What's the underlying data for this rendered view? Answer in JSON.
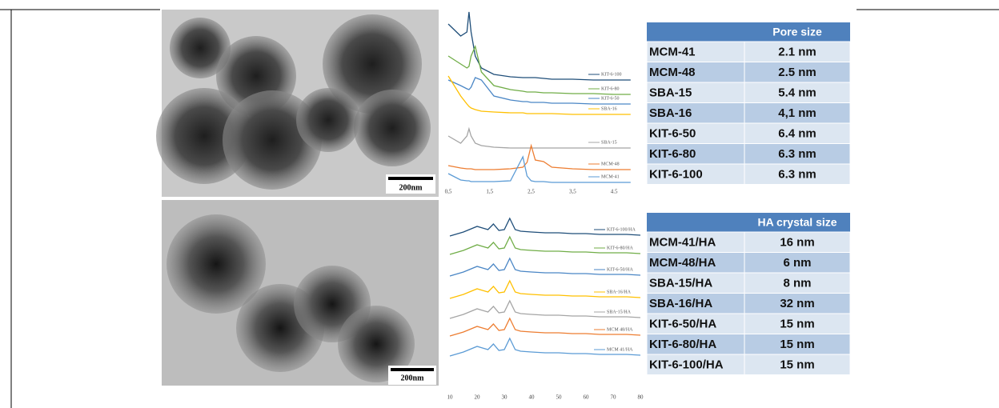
{
  "chart_data": [
    {
      "type": "line",
      "x": [
        0.5,
        0.8,
        0.95,
        1,
        1.05,
        1.15,
        1.3,
        1.6,
        2,
        2.3,
        2.4,
        2.5,
        2.6,
        2.8,
        3,
        3.5,
        4,
        4.5,
        4.9
      ],
      "xlim": [
        0.5,
        5.0
      ],
      "xticks": [
        {
          "value": 0.5,
          "label": "0,5"
        },
        {
          "value": 1.5,
          "label": "1,5"
        },
        {
          "value": 2.5,
          "label": "2,5"
        },
        {
          "value": 3.5,
          "label": "3,5"
        },
        {
          "value": 4.5,
          "label": "4.5"
        }
      ],
      "ylim": [
        0,
        22
      ],
      "series": [
        {
          "name": "KIT-6-100",
          "color": "#1f4e79",
          "values": [
            20.5,
            19,
            19.5,
            22,
            19.5,
            16.5,
            15,
            14.2,
            13.9,
            13.8,
            13.8,
            13.8,
            13.8,
            13.7,
            13.6,
            13.6,
            13.5,
            13.5,
            13.5
          ]
        },
        {
          "name": "KIT-6-80",
          "color": "#70ad47",
          "values": [
            16.5,
            15.5,
            15,
            15.2,
            16.5,
            17.7,
            14.5,
            12.8,
            12.3,
            12.1,
            12,
            12,
            12,
            11.9,
            11.9,
            11.8,
            11.8,
            11.7,
            11.7
          ]
        },
        {
          "name": "KIT-6-50",
          "color": "#4a86c5",
          "values": [
            13.5,
            12.8,
            12.4,
            12.3,
            12.6,
            13.8,
            13.5,
            11.5,
            11,
            10.8,
            10.8,
            10.7,
            10.7,
            10.7,
            10.6,
            10.6,
            10.5,
            10.5,
            10.5
          ]
        },
        {
          "name": "SBA-16",
          "color": "#ffc000",
          "values": [
            14,
            11.5,
            10.5,
            10.2,
            10,
            9.8,
            9.6,
            9.5,
            9.4,
            9.4,
            9.3,
            9.3,
            9.3,
            9.3,
            9.3,
            9.2,
            9.2,
            9.2,
            9.2
          ]
        },
        {
          "name": "SBA-15",
          "color": "#a5a5a5",
          "values": [
            6.5,
            5.6,
            6.5,
            7.4,
            6.5,
            5.6,
            5.3,
            5.1,
            5,
            5,
            5,
            5,
            5,
            5,
            5,
            5,
            5,
            5,
            5
          ]
        },
        {
          "name": "MCM-48",
          "color": "#ed7d31",
          "values": [
            2.8,
            2.5,
            2.4,
            2.4,
            2.4,
            2.3,
            2.3,
            2.3,
            2.4,
            2.6,
            3.2,
            5.3,
            3.5,
            3.3,
            2.6,
            2.4,
            2.3,
            2.3,
            2.3
          ]
        },
        {
          "name": "MCM-41",
          "color": "#5b9bd5",
          "values": [
            1.8,
            1,
            0.9,
            0.9,
            0.8,
            0.8,
            0.8,
            0.8,
            0.9,
            3.9,
            1.5,
            0.9,
            0.8,
            0.8,
            0.7,
            0.7,
            0.7,
            0.7,
            0.7
          ]
        }
      ]
    },
    {
      "type": "line",
      "x": [
        10,
        15,
        20,
        22,
        24,
        26,
        28,
        30,
        32,
        34,
        36,
        40,
        45,
        50,
        55,
        60,
        65,
        70,
        75,
        80
      ],
      "xlim": [
        10,
        80
      ],
      "xticks": [
        10,
        20,
        30,
        40,
        50,
        60,
        70,
        80
      ],
      "ylim": [
        0,
        22
      ],
      "series": [
        {
          "name": "KIT-6-100/HA",
          "color": "#1f4e79",
          "values": [
            19.5,
            20,
            20.7,
            20.5,
            20.3,
            21,
            20.2,
            20.3,
            21.7,
            20.3,
            20.1,
            20,
            19.9,
            19.9,
            19.8,
            19.8,
            19.7,
            19.7,
            19.7,
            19.6
          ]
        },
        {
          "name": "KIT-6-80/HA",
          "color": "#70ad47",
          "values": [
            17.2,
            17.7,
            18.4,
            18.2,
            18,
            18.7,
            17.9,
            18,
            19.4,
            18,
            17.8,
            17.7,
            17.6,
            17.6,
            17.5,
            17.5,
            17.4,
            17.4,
            17.4,
            17.3
          ]
        },
        {
          "name": "KIT-6-50/HA",
          "color": "#4a86c5",
          "values": [
            14.5,
            15,
            15.7,
            15.5,
            15.3,
            16,
            15.2,
            15.3,
            16.7,
            15.3,
            15.1,
            15,
            14.9,
            14.9,
            14.8,
            14.8,
            14.7,
            14.7,
            14.7,
            14.6
          ]
        },
        {
          "name": "SBA-16/HA",
          "color": "#ffc000",
          "values": [
            11.7,
            12.2,
            12.9,
            12.7,
            12.5,
            13.2,
            12.4,
            12.5,
            13.9,
            12.5,
            12.3,
            12.2,
            12.1,
            12.1,
            12,
            12,
            11.9,
            11.9,
            11.9,
            11.8
          ]
        },
        {
          "name": "SBA-15/HA",
          "color": "#a5a5a5",
          "values": [
            9.2,
            9.7,
            10.4,
            10.2,
            10,
            10.7,
            9.9,
            10,
            11.4,
            10,
            9.8,
            9.7,
            9.6,
            9.6,
            9.5,
            9.5,
            9.4,
            9.4,
            9.4,
            9.3
          ]
        },
        {
          "name": "MCM 48/HA",
          "color": "#ed7d31",
          "values": [
            7,
            7.5,
            8.2,
            8,
            7.8,
            8.5,
            7.7,
            7.8,
            9.2,
            7.8,
            7.6,
            7.5,
            7.4,
            7.4,
            7.3,
            7.3,
            7.2,
            7.2,
            7.2,
            7.1
          ]
        },
        {
          "name": "MCM 41/HA",
          "color": "#5b9bd5",
          "values": [
            4.5,
            5,
            5.7,
            5.5,
            5.3,
            6,
            5.2,
            5.3,
            6.7,
            5.3,
            5.1,
            5,
            4.9,
            4.9,
            4.8,
            4.8,
            4.7,
            4.7,
            4.7,
            4.6
          ]
        }
      ]
    }
  ],
  "images": [
    {
      "scale_label": "200nm"
    },
    {
      "scale_label": "200nm"
    }
  ],
  "tables": [
    {
      "header": "Pore size",
      "rows": [
        [
          "MCM-41",
          "2.1 nm"
        ],
        [
          "MCM-48",
          "2.5 nm"
        ],
        [
          "SBA-15",
          "5.4 nm"
        ],
        [
          "SBA-16",
          "4,1 nm"
        ],
        [
          "KIT-6-50",
          "6.4 nm"
        ],
        [
          "KIT-6-80",
          "6.3 nm"
        ],
        [
          "KIT-6-100",
          "6.3 nm"
        ]
      ]
    },
    {
      "header": "HA crystal size",
      "rows": [
        [
          "MCM-41/HA",
          "16 nm"
        ],
        [
          "MCM-48/HA",
          "6 nm"
        ],
        [
          "SBA-15/HA",
          "8 nm"
        ],
        [
          "SBA-16/HA",
          "32 nm"
        ],
        [
          "KIT-6-50/HA",
          "15 nm"
        ],
        [
          "KIT-6-80/HA",
          "15 nm"
        ],
        [
          "KIT-6-100/HA",
          "15 nm"
        ]
      ]
    }
  ]
}
